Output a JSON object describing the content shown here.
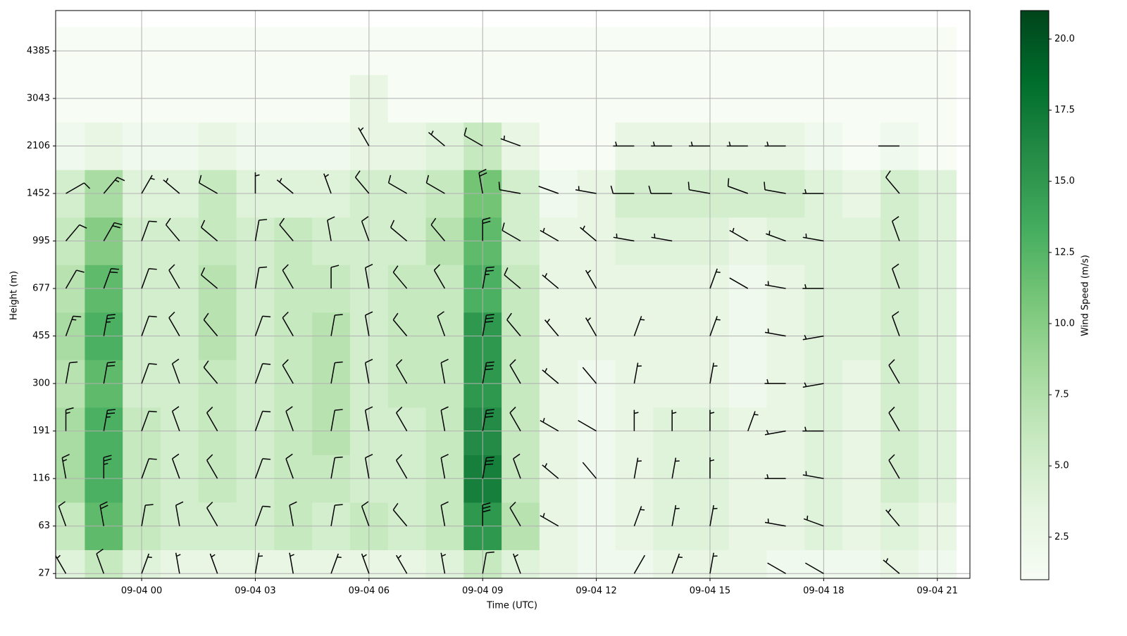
{
  "chart_data": {
    "type": "barbs-heatmap",
    "x_label": "Time (UTC)",
    "y_label": "Height (m)",
    "colorbar_label": "Wind Speed (m/s)",
    "x": [
      -2,
      -1,
      0,
      1,
      2,
      3,
      4,
      5,
      6,
      7,
      8,
      9,
      10,
      11,
      12,
      13,
      14,
      15,
      16,
      17,
      18,
      19,
      20,
      21
    ],
    "xlim": [
      -2.27,
      21.86
    ],
    "xticks": [
      {
        "value": 0,
        "label": "09-04 00"
      },
      {
        "value": 3,
        "label": "09-04 03"
      },
      {
        "value": 6,
        "label": "09-04 06"
      },
      {
        "value": 9,
        "label": "09-04 09"
      },
      {
        "value": 12,
        "label": "09-04 12"
      },
      {
        "value": 15,
        "label": "09-04 15"
      },
      {
        "value": 18,
        "label": "09-04 18"
      },
      {
        "value": 21,
        "label": "09-04 21"
      }
    ],
    "ylim": [
      -0.1,
      11.85
    ],
    "yticks": [
      {
        "value": 0,
        "label": "27"
      },
      {
        "value": 1,
        "label": "63"
      },
      {
        "value": 2,
        "label": "116"
      },
      {
        "value": 3,
        "label": "191"
      },
      {
        "value": 4,
        "label": "300"
      },
      {
        "value": 5,
        "label": "455"
      },
      {
        "value": 6,
        "label": "677"
      },
      {
        "value": 7,
        "label": "995"
      },
      {
        "value": 8,
        "label": "1452"
      },
      {
        "value": 9,
        "label": "2106"
      },
      {
        "value": 10,
        "label": "3043"
      },
      {
        "value": 11,
        "label": "4385"
      }
    ],
    "grid": true,
    "colormap": [
      "#f7fcf5",
      "#e5f5e0",
      "#c7e9c0",
      "#a1d99b",
      "#74c476",
      "#41ab5d",
      "#238b45",
      "#006d2c",
      "#00441b"
    ],
    "clim": [
      1,
      21
    ],
    "cticks": [
      2.5,
      {
        "value": 5,
        "label": "5.0"
      },
      7.5,
      {
        "value": 10,
        "label": "10.0"
      },
      12.5,
      {
        "value": 15,
        "label": "15.0"
      },
      17.5,
      {
        "value": 20,
        "label": "20.0"
      }
    ],
    "z": [
      [
        4,
        6,
        4,
        3,
        3,
        3,
        3,
        3,
        3,
        3,
        4,
        6,
        4,
        3,
        2,
        2,
        3,
        3,
        3,
        2,
        2,
        2,
        3,
        2
      ],
      [
        6,
        12,
        6,
        5,
        5,
        5,
        6,
        5,
        6,
        5,
        6,
        15,
        7,
        3,
        2,
        3,
        4,
        4,
        3,
        3,
        4,
        3,
        4,
        3
      ],
      [
        8,
        13,
        6,
        5,
        6,
        5,
        6,
        6,
        5,
        5,
        6,
        17,
        6,
        3,
        2,
        3,
        4,
        4,
        3,
        3,
        4,
        3,
        5,
        4
      ],
      [
        8,
        13,
        6,
        5,
        6,
        5,
        6,
        7,
        5,
        5,
        6,
        16,
        6,
        3,
        2,
        3,
        4,
        4,
        3,
        3,
        4,
        3,
        5,
        4
      ],
      [
        7,
        12,
        5,
        5,
        6,
        5,
        6,
        7,
        5,
        6,
        6,
        15,
        6,
        3,
        2,
        3,
        3,
        3,
        2,
        3,
        4,
        3,
        5,
        4
      ],
      [
        8,
        13,
        5,
        5,
        7,
        5,
        6,
        7,
        5,
        6,
        6,
        15,
        6,
        3,
        3,
        3,
        3,
        3,
        2,
        3,
        4,
        4,
        5,
        4
      ],
      [
        7,
        12,
        5,
        5,
        7,
        5,
        6,
        6,
        5,
        6,
        6,
        13,
        6,
        3,
        3,
        3,
        3,
        3,
        2,
        3,
        4,
        4,
        5,
        4
      ],
      [
        6,
        10,
        5,
        5,
        6,
        5,
        6,
        5,
        5,
        5,
        7,
        12,
        5,
        3,
        3,
        4,
        4,
        4,
        3,
        4,
        4,
        4,
        5,
        4
      ],
      [
        5,
        8,
        4,
        4,
        6,
        4,
        4,
        4,
        5,
        5,
        6,
        11,
        5,
        2,
        3,
        5,
        5,
        5,
        5,
        5,
        4,
        3,
        5,
        4
      ],
      [
        2,
        3,
        2,
        2,
        3,
        2,
        2,
        2,
        3,
        3,
        4,
        6,
        3,
        1,
        1,
        3,
        3,
        3,
        3,
        3,
        2,
        1,
        2,
        1
      ],
      [
        1,
        1,
        1,
        1,
        1,
        1,
        1,
        1,
        3,
        1,
        1,
        1,
        1,
        1,
        1,
        1,
        1,
        1,
        1,
        1,
        1,
        1,
        1,
        1
      ],
      [
        1,
        1,
        1,
        1,
        1,
        1,
        1,
        1,
        1,
        1,
        1,
        1,
        1,
        1,
        1,
        1,
        1,
        1,
        1,
        1,
        1,
        1,
        1,
        1
      ]
    ],
    "direction": [
      [
        330,
        340,
        20,
        350,
        340,
        10,
        350,
        20,
        340,
        330,
        350,
        10,
        340,
        null,
        null,
        30,
        20,
        10,
        null,
        300,
        300,
        null,
        310,
        null
      ],
      [
        340,
        350,
        10,
        350,
        330,
        20,
        350,
        10,
        340,
        320,
        350,
        0,
        330,
        300,
        null,
        20,
        10,
        10,
        null,
        280,
        290,
        null,
        320,
        null
      ],
      [
        350,
        0,
        20,
        340,
        330,
        20,
        340,
        10,
        350,
        330,
        350,
        10,
        340,
        310,
        320,
        10,
        10,
        0,
        null,
        270,
        280,
        null,
        330,
        null
      ],
      [
        0,
        10,
        20,
        340,
        330,
        20,
        340,
        10,
        350,
        330,
        350,
        10,
        330,
        300,
        300,
        0,
        0,
        0,
        20,
        260,
        270,
        null,
        330,
        null
      ],
      [
        10,
        10,
        20,
        340,
        320,
        20,
        330,
        10,
        350,
        330,
        350,
        10,
        330,
        310,
        320,
        10,
        null,
        10,
        null,
        270,
        260,
        null,
        330,
        null
      ],
      [
        20,
        10,
        20,
        330,
        320,
        20,
        330,
        10,
        350,
        320,
        340,
        10,
        320,
        320,
        330,
        20,
        null,
        20,
        null,
        280,
        260,
        null,
        340,
        null
      ],
      [
        30,
        20,
        20,
        330,
        310,
        10,
        330,
        0,
        350,
        320,
        330,
        10,
        310,
        310,
        330,
        null,
        null,
        20,
        300,
        280,
        270,
        null,
        340,
        null
      ],
      [
        40,
        30,
        20,
        320,
        310,
        10,
        320,
        350,
        340,
        310,
        320,
        0,
        300,
        300,
        310,
        280,
        280,
        null,
        300,
        290,
        280,
        null,
        340,
        null
      ],
      [
        60,
        40,
        30,
        310,
        300,
        0,
        310,
        340,
        320,
        300,
        300,
        350,
        280,
        290,
        280,
        270,
        270,
        280,
        290,
        280,
        270,
        null,
        320,
        null
      ],
      [
        null,
        null,
        null,
        null,
        null,
        null,
        null,
        null,
        330,
        null,
        310,
        300,
        290,
        null,
        null,
        270,
        270,
        270,
        270,
        270,
        null,
        null,
        270,
        null
      ],
      [
        null,
        null,
        null,
        null,
        null,
        null,
        null,
        null,
        null,
        null,
        null,
        null,
        null,
        null,
        null,
        null,
        null,
        null,
        null,
        null,
        null,
        null,
        null,
        null
      ],
      [
        null,
        null,
        null,
        null,
        null,
        null,
        null,
        null,
        null,
        null,
        null,
        null,
        null,
        null,
        null,
        null,
        null,
        null,
        null,
        null,
        null,
        null,
        null,
        null
      ]
    ]
  }
}
